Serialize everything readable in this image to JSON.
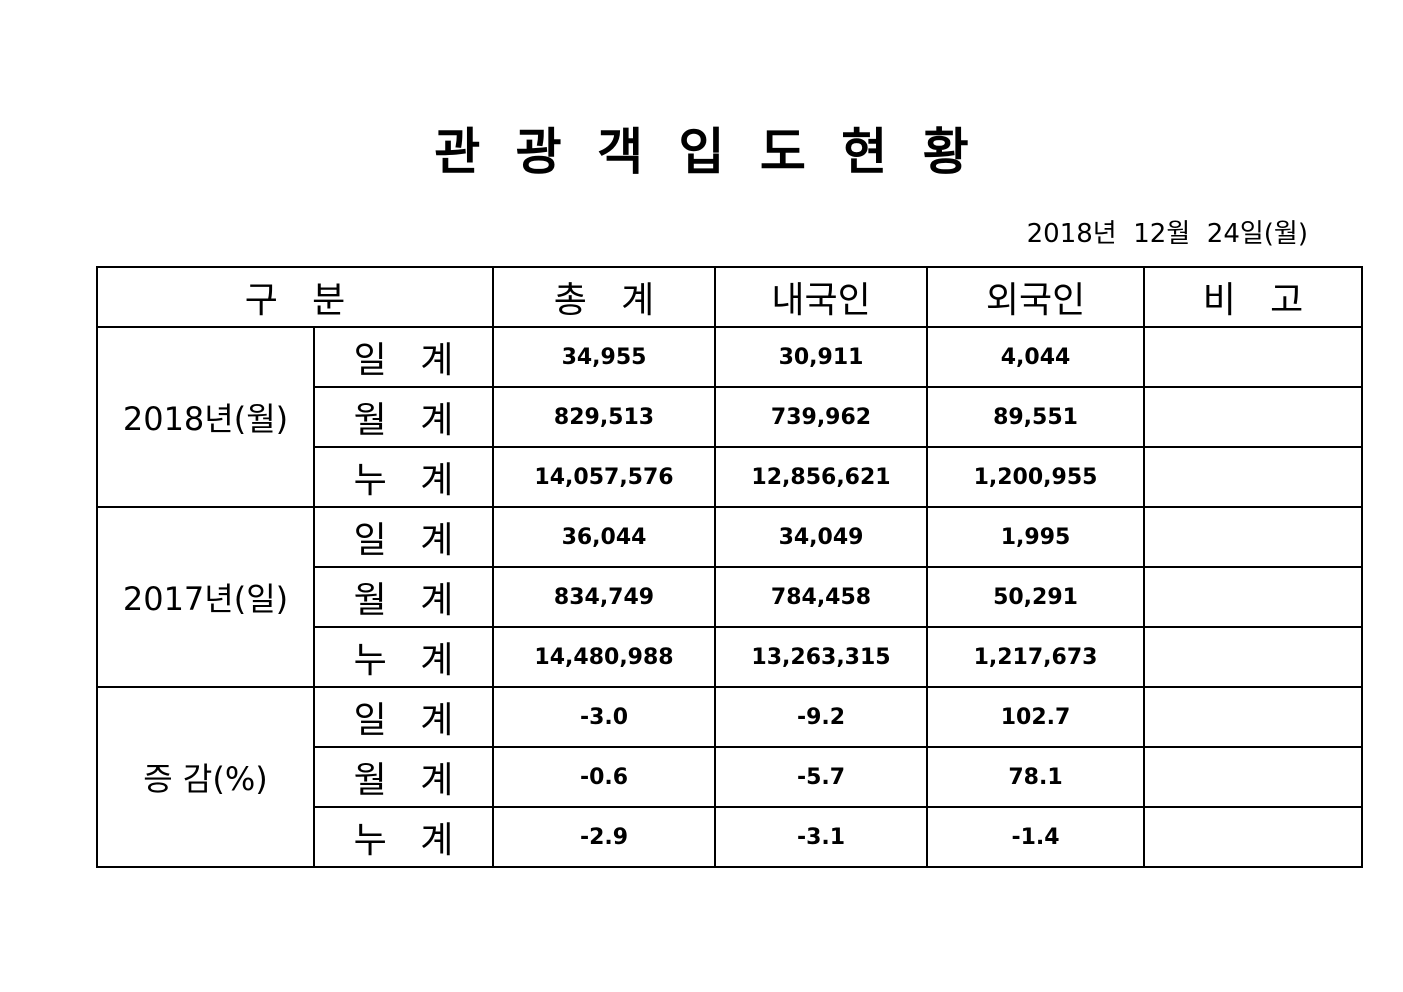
{
  "header": {
    "title": "관 광 객 입 도 현 황",
    "date": "2018년  12월  24일(월)"
  },
  "table": {
    "columns": [
      "구   분",
      "총   계",
      "내국인",
      "외국인",
      "비   고"
    ],
    "groups": [
      {
        "label": "2018년(월)",
        "rows": [
          {
            "label": "일 계",
            "values": [
              "34,955",
              "30,911",
              "4,044"
            ]
          },
          {
            "label": "월 계",
            "values": [
              "829,513",
              "739,962",
              "89,551"
            ]
          },
          {
            "label": "누 계",
            "values": [
              "14,057,576",
              "12,856,621",
              "1,200,955"
            ]
          }
        ]
      },
      {
        "label": "2017년(일)",
        "rows": [
          {
            "label": "일 계",
            "values": [
              "36,044",
              "34,049",
              "1,995"
            ]
          },
          {
            "label": "월 계",
            "values": [
              "834,749",
              "784,458",
              "50,291"
            ]
          },
          {
            "label": "누 계",
            "values": [
              "14,480,988",
              "13,263,315",
              "1,217,673"
            ]
          }
        ]
      },
      {
        "label": "증 감(%)",
        "rows": [
          {
            "label": "일 계",
            "values": [
              "-3.0",
              "-9.2",
              "102.7"
            ]
          },
          {
            "label": "월 계",
            "values": [
              "-0.6",
              "-5.7",
              "78.1"
            ]
          },
          {
            "label": "누 계",
            "values": [
              "-2.9",
              "-3.1",
              "-1.4"
            ]
          }
        ]
      }
    ]
  }
}
